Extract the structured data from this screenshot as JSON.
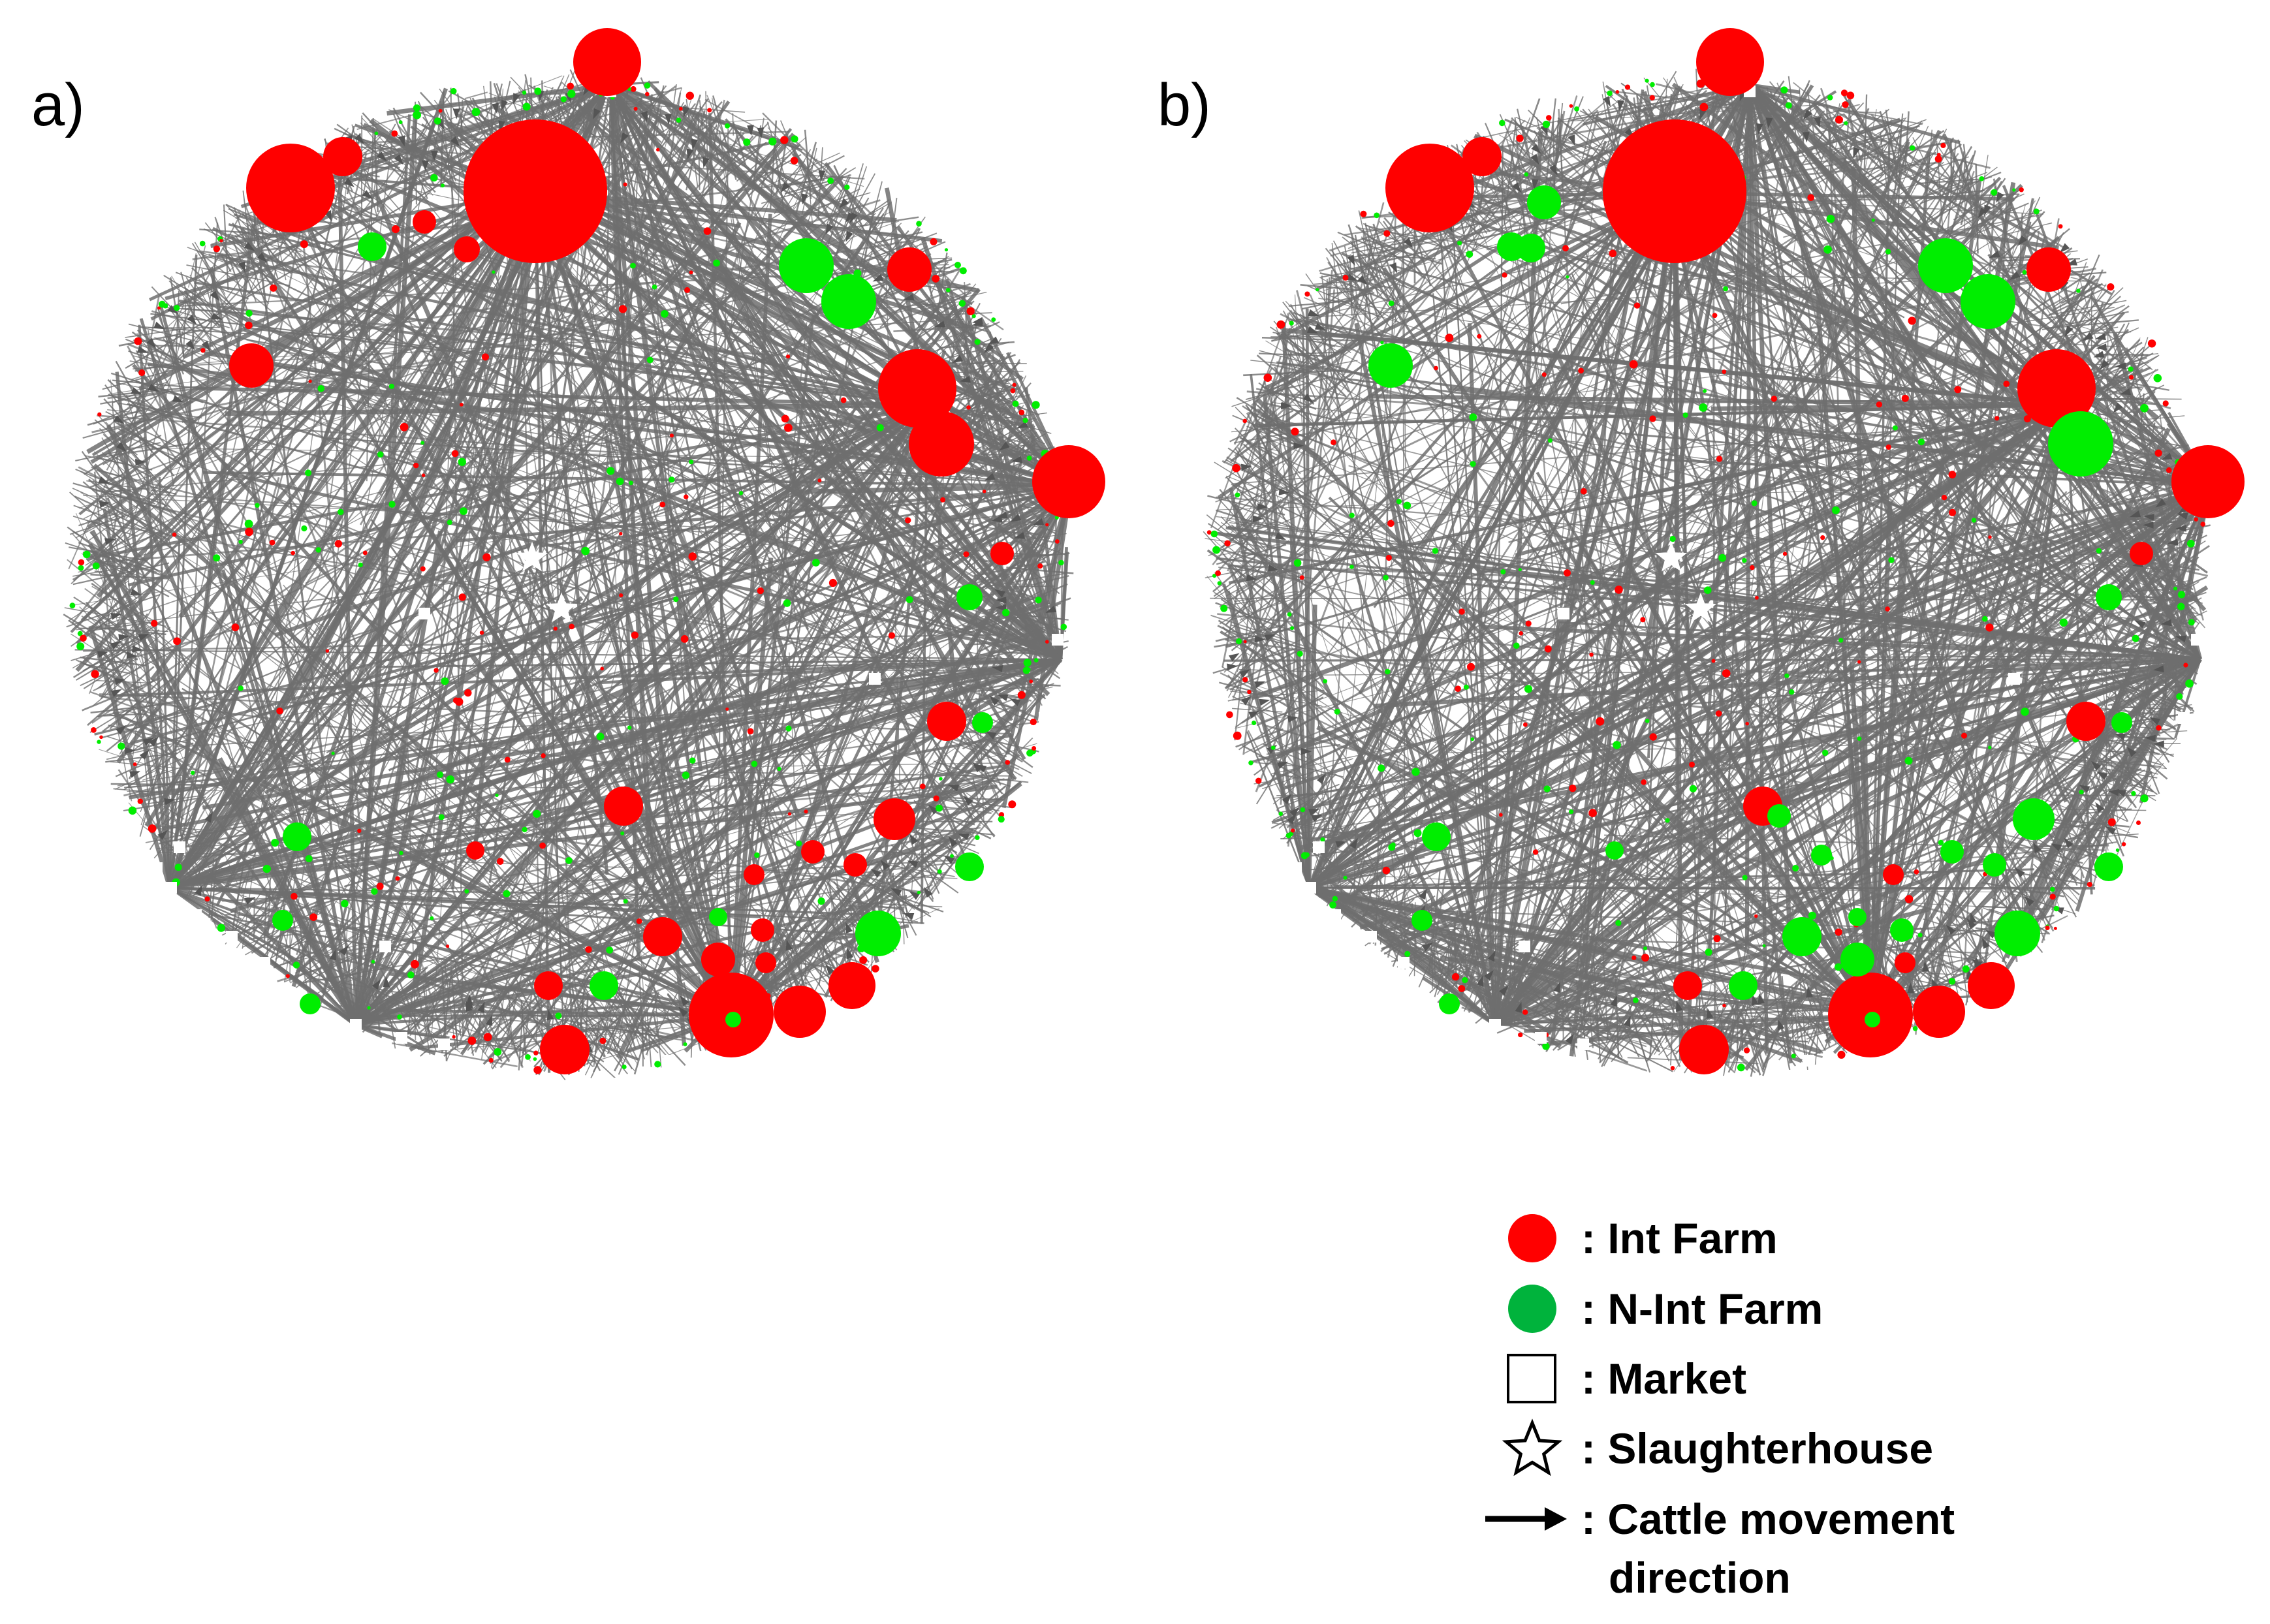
{
  "panels": [
    {
      "label": "a)"
    },
    {
      "label": "b)"
    }
  ],
  "legend": {
    "items": [
      {
        "key": "int_farm",
        "symbol": "red-circle",
        "text": ": Int Farm"
      },
      {
        "key": "n_int_farm",
        "symbol": "green-circle",
        "text": ": N-Int Farm"
      },
      {
        "key": "market",
        "symbol": "white-square",
        "text": ": Market"
      },
      {
        "key": "slaughterhouse",
        "symbol": "star",
        "text": ": Slaughterhouse"
      },
      {
        "key": "movement",
        "symbol": "arrow",
        "text": ": Cattle movement",
        "text2": "direction"
      }
    ]
  },
  "colors": {
    "int_farm": "#ff0000",
    "n_int_farm": "#00ee00",
    "legend_green": "#00b33c",
    "edge": "#6e6e6e",
    "market": "#ffffff"
  }
}
